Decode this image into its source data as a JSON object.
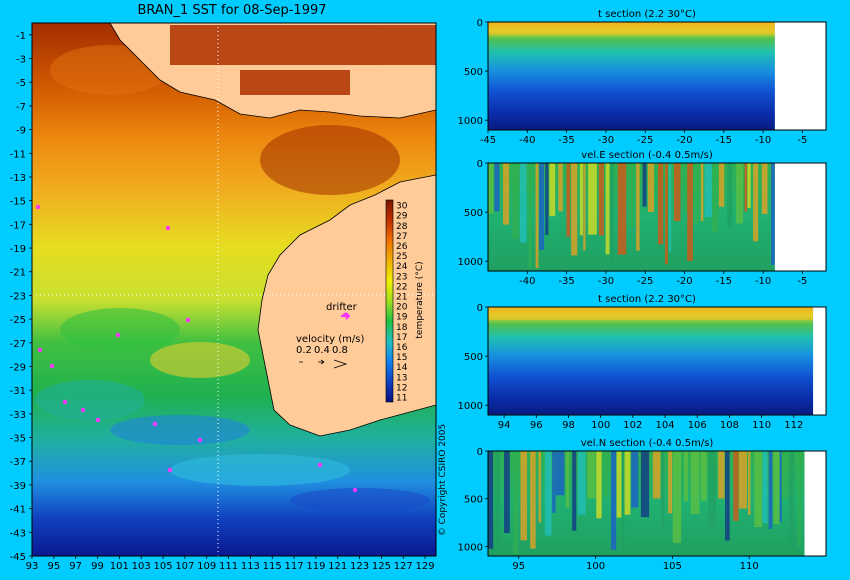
{
  "map": {
    "title": "BRAN_1 SST for 08-Sep-1997",
    "lat_labels": [
      "-1",
      "-3",
      "-5",
      "-7",
      "-9",
      "-11",
      "-13",
      "-15",
      "-17",
      "-19",
      "-21",
      "-23",
      "-25",
      "-27",
      "-29",
      "-31",
      "-33",
      "-35",
      "-37",
      "-39",
      "-41",
      "-43",
      "-45"
    ],
    "lon_labels": [
      "93",
      "95",
      "97",
      "99",
      "101",
      "103",
      "105",
      "107",
      "109",
      "111",
      "113",
      "115",
      "117",
      "119",
      "121",
      "123",
      "125",
      "127",
      "129"
    ],
    "lat_range": [
      -45,
      0
    ],
    "lon_range": [
      93,
      130
    ],
    "section_lon": 110.2,
    "section_lat": -23.6,
    "drifter_label": "drifter",
    "velocity_label": "velocity (m/s)",
    "velocity_scale": [
      "0.2",
      "0.4",
      "0.8"
    ],
    "colorbar": {
      "label": "temperature (°C)",
      "ticks": [
        "30",
        "29",
        "28",
        "27",
        "26",
        "25",
        "24",
        "23",
        "22",
        "21",
        "20",
        "19",
        "18",
        "17",
        "16",
        "15",
        "14",
        "13",
        "12",
        "11"
      ],
      "range": [
        10.5,
        30.5
      ]
    },
    "copyright": "© Copyright CSIRO 2005",
    "colors": {
      "land": "#ffcc99",
      "background": "#00ccff",
      "drifter": "#ff33ff"
    }
  },
  "panels": [
    {
      "id": "t-section-lat",
      "title": "t section (2.2       30°C)",
      "x_labels": [
        "-45",
        "-40",
        "-35",
        "-30",
        "-25",
        "-20",
        "-15",
        "-10",
        "-5"
      ],
      "x_range": [
        -45,
        -2
      ],
      "y_labels": [
        "0",
        "500",
        "1000"
      ],
      "y_range": [
        0,
        1100
      ],
      "kind": "temperature",
      "land_from": -8.5
    },
    {
      "id": "vel-e-section",
      "title": "vel.E section (-0.4       0.5m/s)",
      "x_labels": [
        "-40",
        "-35",
        "-30",
        "-25",
        "-20",
        "-15",
        "-10",
        "-5"
      ],
      "x_range": [
        -45,
        -2
      ],
      "y_labels": [
        "0",
        "500",
        "1000"
      ],
      "y_range": [
        0,
        1100
      ],
      "kind": "velocity",
      "land_from": -8.5
    },
    {
      "id": "t-section-lon",
      "title": "t section (2.2       30°C)",
      "x_labels": [
        "94",
        "96",
        "98",
        "100",
        "102",
        "104",
        "106",
        "108",
        "110",
        "112"
      ],
      "x_range": [
        93,
        114
      ],
      "y_labels": [
        "0",
        "500",
        "1000"
      ],
      "y_range": [
        0,
        1100
      ],
      "kind": "temperature",
      "land_from": 113.2
    },
    {
      "id": "vel-n-section",
      "title": "vel.N section (-0.4       0.5m/s)",
      "x_labels": [
        "95",
        "100",
        "105",
        "110"
      ],
      "x_range": [
        93,
        115
      ],
      "y_labels": [
        "0",
        "500",
        "1000"
      ],
      "y_range": [
        0,
        1100
      ],
      "kind": "velocity",
      "land_from": 113.6
    }
  ]
}
